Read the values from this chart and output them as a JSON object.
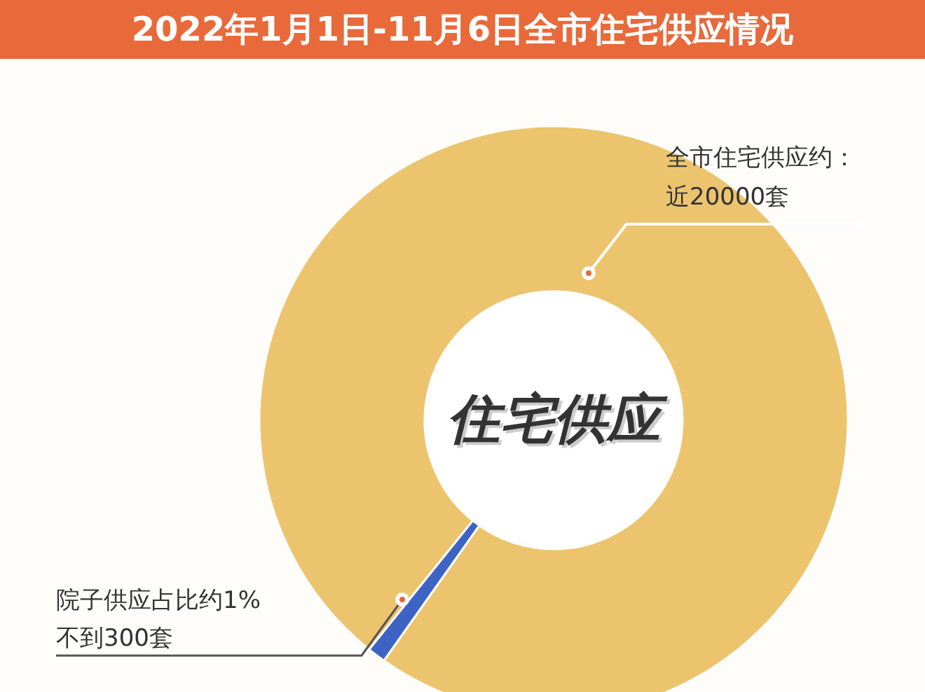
{
  "chart_data": {
    "type": "donut",
    "title": "2022年1月1日-11月6日全市住宅供应情况",
    "subtitle": "住宅供应",
    "categories": [
      null,
      null
    ],
    "values": [
      99,
      1
    ],
    "colors": [
      "#ecc46e",
      "#3d63c4"
    ],
    "annotations": [
      "全市住宅供应约：",
      "近20000套",
      "院子供应占比约1%",
      "不到300套"
    ]
  }
}
